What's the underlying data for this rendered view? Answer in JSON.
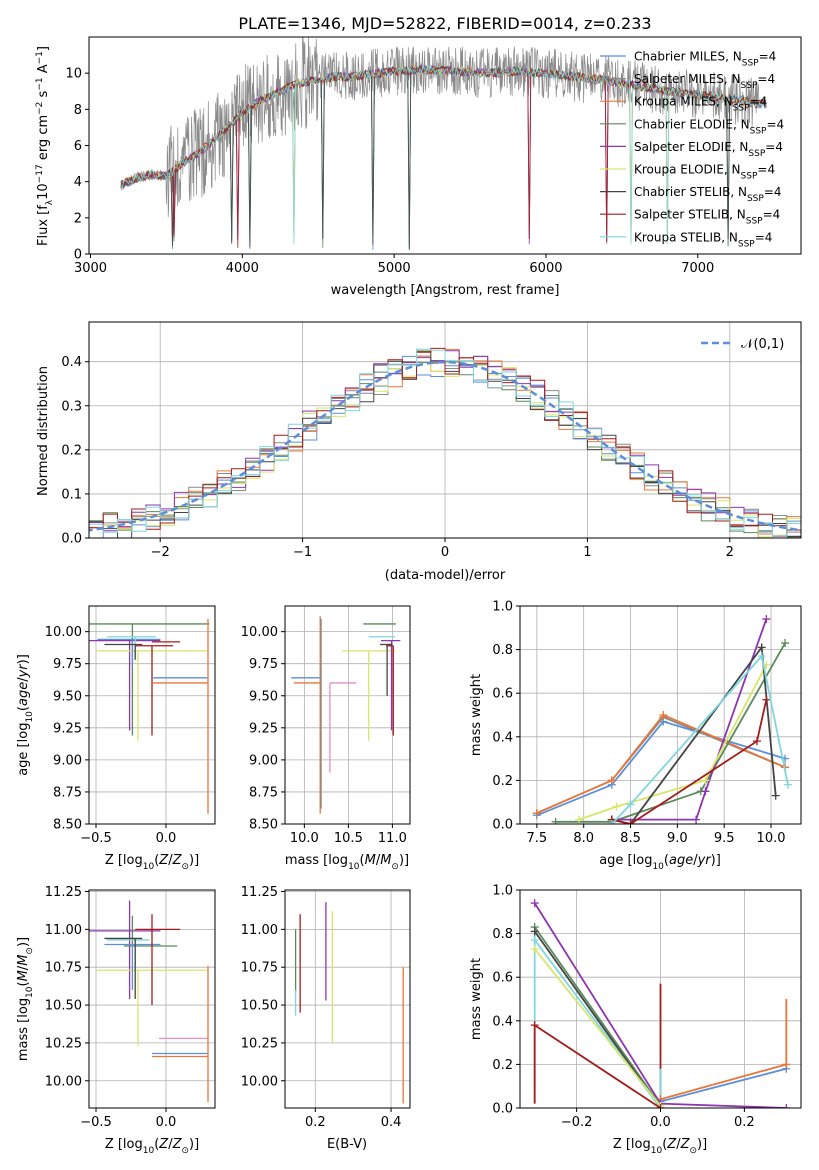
{
  "figure": {
    "title": "PLATE=1346, MJD=52822, FIBERID=0014, z=0.233"
  },
  "series_styles": [
    {
      "name": "Chabrier MILES",
      "color": "#5b8fd9"
    },
    {
      "name": "Salpeter MILES",
      "color": "#8a8a8a"
    },
    {
      "name": "Kroupa MILES",
      "color": "#e8773a"
    },
    {
      "name": "Chabrier ELODIE",
      "color": "#5a8a5a"
    },
    {
      "name": "Salpeter ELODIE",
      "color": "#8e35b0"
    },
    {
      "name": "Kroupa ELODIE",
      "color": "#d7e66a"
    },
    {
      "name": "Chabrier STELIB",
      "color": "#444444"
    },
    {
      "name": "Salpeter STELIB",
      "color": "#a51c1c"
    },
    {
      "name": "Kroupa STELIB",
      "color": "#7fd6df"
    }
  ],
  "chart_data": [
    {
      "id": "spectrum",
      "type": "line",
      "title": "PLATE=1346, MJD=52822, FIBERID=0014, z=0.233",
      "xlabel": "wavelength [Angstrom, rest frame]",
      "ylabel": "Flux [f_λ 10^-17 erg cm^-2 s^-1 A^-1]",
      "xlim": [
        2990,
        7680
      ],
      "ylim": [
        0,
        12
      ],
      "xticks": [
        3000,
        4000,
        5000,
        6000,
        7000
      ],
      "yticks": [
        0,
        2,
        4,
        6,
        8,
        10
      ],
      "legend_position": "right",
      "legend": [
        {
          "label": "Chabrier MILES, N_SSP=4",
          "color": "#5b8fd9"
        },
        {
          "label": "Salpeter MILES, N_SSP=4",
          "color": "#8a8a8a"
        },
        {
          "label": "Kroupa MILES, N_SSP=4",
          "color": "#e8773a"
        },
        {
          "label": "Chabrier ELODIE, N_SSP=4",
          "color": "#5a8a5a"
        },
        {
          "label": "Salpeter ELODIE, N_SSP=4",
          "color": "#8e35b0"
        },
        {
          "label": "Kroupa ELODIE, N_SSP=4",
          "color": "#d7e66a"
        },
        {
          "label": "Chabrier STELIB, N_SSP=4",
          "color": "#444444"
        },
        {
          "label": "Salpeter STELIB, N_SSP=4",
          "color": "#a51c1c"
        },
        {
          "label": "Kroupa STELIB, N_SSP=4",
          "color": "#7fd6df"
        }
      ],
      "continuum": {
        "x": [
          3200,
          3300,
          3400,
          3500,
          3600,
          3700,
          3800,
          3900,
          4000,
          4100,
          4200,
          4300,
          4400,
          4500,
          4600,
          4700,
          4800,
          4900,
          5000,
          5200,
          5400,
          5600,
          5800,
          6000,
          6200,
          6400,
          6600,
          6800,
          7000,
          7200,
          7400
        ],
        "y": [
          3.8,
          4.2,
          4.4,
          4.3,
          5.0,
          5.5,
          6.2,
          7.0,
          7.8,
          8.4,
          8.8,
          9.2,
          9.5,
          9.6,
          9.8,
          9.8,
          9.9,
          10.0,
          10.1,
          10.2,
          10.1,
          10.0,
          10.1,
          10.0,
          9.8,
          9.6,
          9.3,
          9.0,
          8.8,
          8.6,
          8.3
        ]
      },
      "noisy_observed_range": [
        3500,
        7400
      ],
      "absorption_features_x": [
        3540,
        3550,
        3930,
        3968,
        4050,
        4340,
        4530,
        4860,
        5100,
        5890,
        6400,
        6560,
        6800,
        7200
      ]
    },
    {
      "id": "residuals",
      "type": "histogram",
      "xlabel": "(data-model)/error",
      "ylabel": "Normed distribution",
      "xlim": [
        -2.5,
        2.5
      ],
      "ylim": [
        0,
        0.49
      ],
      "xticks": [
        -2,
        -1,
        0,
        1,
        2
      ],
      "yticks": [
        0.0,
        0.1,
        0.2,
        0.3,
        0.4
      ],
      "bin_width": 0.1,
      "reference_curve": {
        "label": "𝒩(0,1)",
        "color": "#5b8fd9",
        "style": "dashed"
      },
      "legend_position": "top-right"
    },
    {
      "id": "age_vs_Z",
      "type": "errorbar",
      "xlabel": "Z [log10(Z/Z⊙)]",
      "ylabel": "age  [log10(age/yr)]",
      "xlim": [
        -0.55,
        0.35
      ],
      "ylim": [
        8.5,
        10.2
      ],
      "xticks": [
        -0.5,
        0.0
      ],
      "yticks": [
        8.5,
        8.75,
        9.0,
        9.25,
        9.5,
        9.75,
        10.0
      ],
      "points": [
        {
          "color": "#8e35b0",
          "x": -0.26,
          "y": 9.93,
          "xerr": [
            0.5,
            0.22
          ],
          "yerr": [
            0.7,
            0.0
          ]
        },
        {
          "color": "#5a8a5a",
          "x": -0.24,
          "y": 10.06,
          "xerr": [
            0.44,
            0.55
          ],
          "yerr": [
            0.87,
            0.0
          ]
        },
        {
          "color": "#d7e66a",
          "x": -0.2,
          "y": 9.85,
          "xerr": [
            0.3,
            0.5
          ],
          "yerr": [
            0.7,
            0.0
          ]
        },
        {
          "color": "#5b8fd9",
          "x": -0.24,
          "y": 9.94,
          "xerr": [
            0.25,
            0.2
          ],
          "yerr": [
            0.2,
            0.0
          ]
        },
        {
          "color": "#7fd6df",
          "x": -0.22,
          "y": 9.96,
          "xerr": [
            0.2,
            0.15
          ],
          "yerr": [
            0.15,
            0.0
          ]
        },
        {
          "color": "#444444",
          "x": -0.22,
          "y": 9.9,
          "xerr": [
            0.22,
            0.05
          ],
          "yerr": [
            0.12,
            0.0
          ]
        },
        {
          "color": "#a51c1c",
          "x": -0.1,
          "y": 9.89,
          "xerr": [
            0.12,
            0.15
          ],
          "yerr": [
            0.7,
            0.0
          ]
        },
        {
          "color": "#a51c1c",
          "x": -0.1,
          "y": 9.92,
          "xerr": [
            0.0,
            0.2
          ],
          "yerr": [
            0.0,
            0.0
          ]
        },
        {
          "color": "#5b8fd9",
          "x": 0.3,
          "y": 9.64,
          "xerr": [
            0.4,
            0.0
          ],
          "yerr": [
            0.0,
            0.0
          ]
        },
        {
          "color": "#e8773a",
          "x": 0.3,
          "y": 9.6,
          "xerr": [
            0.4,
            0.0
          ],
          "yerr": [
            1.02,
            0.5
          ]
        }
      ]
    },
    {
      "id": "age_vs_mass",
      "type": "errorbar",
      "xlabel": "mass [log10(M/M⊙)]",
      "ylabel": "",
      "xlim": [
        9.78,
        11.2
      ],
      "ylim": [
        8.5,
        10.2
      ],
      "xticks": [
        10.0,
        10.5,
        11.0
      ],
      "yticks": [
        8.5,
        8.75,
        9.0,
        9.25,
        9.5,
        9.75,
        10.0
      ],
      "points": [
        {
          "color": "#5b8fd9",
          "x": 10.18,
          "y": 9.64,
          "xerr": [
            0.33,
            0.0
          ],
          "yerr": [
            0.0,
            0.0
          ]
        },
        {
          "color": "#e8773a",
          "x": 10.18,
          "y": 9.6,
          "xerr": [
            0.3,
            0.0
          ],
          "yerr": [
            1.02,
            0.52
          ]
        },
        {
          "color": "#8a8a8a",
          "x": 10.19,
          "y": 9.6,
          "xerr": [
            0.0,
            0.0
          ],
          "yerr": [
            0.98,
            0.5
          ]
        },
        {
          "color": "#e88fbf",
          "x": 10.29,
          "y": 9.6,
          "xerr": [
            0.0,
            0.3
          ],
          "yerr": [
            0.7,
            0.0
          ]
        },
        {
          "color": "#5a8a5a",
          "x": 10.89,
          "y": 10.06,
          "xerr": [
            0.22,
            0.15
          ],
          "yerr": [
            0.0,
            0.0
          ]
        },
        {
          "color": "#d7e66a",
          "x": 10.73,
          "y": 9.85,
          "xerr": [
            0.3,
            0.3
          ],
          "yerr": [
            0.7,
            0.0
          ]
        },
        {
          "color": "#7fd6df",
          "x": 10.93,
          "y": 9.96,
          "xerr": [
            0.2,
            0.1
          ],
          "yerr": [
            0.0,
            0.0
          ]
        },
        {
          "color": "#8e35b0",
          "x": 10.99,
          "y": 9.93,
          "xerr": [
            0.12,
            0.1
          ],
          "yerr": [
            0.7,
            0.0
          ]
        },
        {
          "color": "#444444",
          "x": 10.94,
          "y": 9.9,
          "xerr": [
            0.08,
            0.06
          ],
          "yerr": [
            0.4,
            0.0
          ]
        },
        {
          "color": "#a51c1c",
          "x": 11.01,
          "y": 9.89,
          "xerr": [
            0.08,
            0.0
          ],
          "yerr": [
            0.7,
            0.0
          ]
        }
      ]
    },
    {
      "id": "weight_vs_age",
      "type": "line",
      "xlabel": "age  [log10(age/yr)]",
      "ylabel": "mass weight",
      "xlim": [
        7.32,
        10.32
      ],
      "ylim": [
        0.0,
        1.0
      ],
      "xticks": [
        7.5,
        8.0,
        8.5,
        9.0,
        9.5,
        10.0
      ],
      "yticks": [
        0.0,
        0.2,
        0.4,
        0.6,
        0.8,
        1.0
      ],
      "series": [
        {
          "color": "#5b8fd9",
          "x": [
            7.5,
            8.3,
            8.85,
            10.15
          ],
          "y": [
            0.04,
            0.18,
            0.47,
            0.3
          ]
        },
        {
          "color": "#8a8a8a",
          "x": [
            7.5,
            8.3,
            8.85,
            10.15
          ],
          "y": [
            0.05,
            0.2,
            0.49,
            0.26
          ]
        },
        {
          "color": "#e8773a",
          "x": [
            7.5,
            8.3,
            8.85,
            10.15
          ],
          "y": [
            0.05,
            0.2,
            0.5,
            0.26
          ]
        },
        {
          "color": "#5a8a5a",
          "x": [
            7.7,
            8.3,
            9.25,
            10.15
          ],
          "y": [
            0.01,
            0.01,
            0.15,
            0.83
          ]
        },
        {
          "color": "#8e35b0",
          "x": [
            8.3,
            9.2,
            9.3,
            9.95
          ],
          "y": [
            0.02,
            0.02,
            0.15,
            0.94
          ]
        },
        {
          "color": "#d7e66a",
          "x": [
            7.95,
            8.35,
            9.3,
            9.95
          ],
          "y": [
            0.02,
            0.08,
            0.2,
            0.73
          ]
        },
        {
          "color": "#444444",
          "x": [
            8.3,
            8.5,
            9.9,
            10.05
          ],
          "y": [
            0.02,
            0.0,
            0.81,
            0.13
          ]
        },
        {
          "color": "#a51c1c",
          "x": [
            8.3,
            8.5,
            9.85,
            9.95
          ],
          "y": [
            0.02,
            0.0,
            0.38,
            0.57
          ]
        },
        {
          "color": "#7fd6df",
          "x": [
            8.3,
            8.5,
            9.9,
            10.18
          ],
          "y": [
            0.0,
            0.09,
            0.77,
            0.18
          ]
        }
      ]
    },
    {
      "id": "mass_vs_Z",
      "type": "errorbar",
      "xlabel": "Z [log10(Z/Z⊙)]",
      "ylabel": "mass [log10(M/M⊙)]",
      "xlim": [
        -0.55,
        0.35
      ],
      "ylim": [
        9.82,
        11.26
      ],
      "xticks": [
        -0.5,
        0.0
      ],
      "yticks": [
        10.0,
        10.25,
        10.5,
        10.75,
        11.0,
        11.25
      ],
      "points": [
        {
          "color": "#8e35b0",
          "x": -0.26,
          "y": 10.99,
          "xerr": [
            0.5,
            0.22
          ],
          "yerr": [
            0.45,
            0.2
          ]
        },
        {
          "color": "#5a8a5a",
          "x": -0.24,
          "y": 10.89,
          "xerr": [
            0.06,
            0.32
          ],
          "yerr": [
            0.0,
            0.2
          ]
        },
        {
          "color": "#d7e66a",
          "x": -0.2,
          "y": 10.73,
          "xerr": [
            0.3,
            0.5
          ],
          "yerr": [
            0.5,
            0.0
          ]
        },
        {
          "color": "#5b8fd9",
          "x": -0.24,
          "y": 10.9,
          "xerr": [
            0.2,
            0.2
          ],
          "yerr": [
            0.3,
            0.0
          ]
        },
        {
          "color": "#7fd6df",
          "x": -0.22,
          "y": 10.93,
          "xerr": [
            0.2,
            0.1
          ],
          "yerr": [
            0.2,
            0.0
          ]
        },
        {
          "color": "#444444",
          "x": -0.22,
          "y": 10.94,
          "xerr": [
            0.22,
            0.05
          ],
          "yerr": [
            0.4,
            0.0
          ]
        },
        {
          "color": "#a51c1c",
          "x": -0.1,
          "y": 11.0,
          "xerr": [
            0.12,
            0.2
          ],
          "yerr": [
            0.5,
            0.1
          ]
        },
        {
          "color": "#e88fbf",
          "x": 0.3,
          "y": 10.28,
          "xerr": [
            0.35,
            0.0
          ],
          "yerr": [
            0.0,
            0.0
          ]
        },
        {
          "color": "#5b8fd9",
          "x": 0.3,
          "y": 10.18,
          "xerr": [
            0.4,
            0.0
          ],
          "yerr": [
            0.0,
            0.0
          ]
        },
        {
          "color": "#e8773a",
          "x": 0.3,
          "y": 10.16,
          "xerr": [
            0.4,
            0.0
          ],
          "yerr": [
            0.3,
            0.6
          ]
        }
      ]
    },
    {
      "id": "mass_vs_ebv",
      "type": "errorbar",
      "xlabel": "E(B-V)",
      "ylabel": "",
      "xlim": [
        0.12,
        0.45
      ],
      "ylim": [
        9.82,
        11.26
      ],
      "xticks": [
        0.2,
        0.4
      ],
      "yticks": [
        10.0,
        10.25,
        10.5,
        10.75,
        11.0,
        11.25
      ],
      "points": [
        {
          "color": "#5a8a5a",
          "x": 0.148,
          "y": 10.58,
          "xerr": [
            0.0,
            0.0
          ],
          "yerr": [
            0.0,
            0.42
          ]
        },
        {
          "color": "#7fd6df",
          "x": 0.148,
          "y": 10.5,
          "xerr": [
            0.0,
            0.0
          ],
          "yerr": [
            0.07,
            0.1
          ]
        },
        {
          "color": "#a51c1c",
          "x": 0.16,
          "y": 10.75,
          "xerr": [
            0.0,
            0.0
          ],
          "yerr": [
            0.3,
            0.35
          ]
        },
        {
          "color": "#8e35b0",
          "x": 0.228,
          "y": 10.98,
          "xerr": [
            0.0,
            0.0
          ],
          "yerr": [
            0.45,
            0.2
          ]
        },
        {
          "color": "#d7e66a",
          "x": 0.245,
          "y": 10.7,
          "xerr": [
            0.0,
            0.0
          ],
          "yerr": [
            0.45,
            0.42
          ]
        },
        {
          "color": "#e8773a",
          "x": 0.432,
          "y": 10.3,
          "xerr": [
            0.0,
            0.0
          ],
          "yerr": [
            0.45,
            0.45
          ]
        }
      ]
    },
    {
      "id": "weight_vs_Z",
      "type": "line",
      "xlabel": "Z [log10(Z/Z⊙)]",
      "ylabel": "mass weight",
      "xlim": [
        -0.335,
        0.335
      ],
      "ylim": [
        0.0,
        1.0
      ],
      "xticks": [
        -0.2,
        0.0,
        0.2
      ],
      "yticks": [
        0.0,
        0.2,
        0.4,
        0.6,
        0.8,
        1.0
      ],
      "series": [
        {
          "color": "#5b8fd9",
          "x": [
            0.0,
            0.3
          ],
          "y": [
            0.03,
            0.18
          ]
        },
        {
          "color": "#e8773a",
          "x": [
            0.0,
            0.3
          ],
          "y": [
            0.04,
            0.2
          ]
        },
        {
          "color": "#8e35b0",
          "x": [
            -0.3,
            0.0,
            0.3
          ],
          "y": [
            0.94,
            0.02,
            0.0
          ]
        },
        {
          "color": "#5a8a5a",
          "x": [
            -0.3,
            0.0
          ],
          "y": [
            0.83,
            0.01
          ]
        },
        {
          "color": "#444444",
          "x": [
            -0.3,
            0.0
          ],
          "y": [
            0.81,
            0.0
          ]
        },
        {
          "color": "#7fd6df",
          "x": [
            -0.3,
            0.0
          ],
          "y": [
            0.77,
            0.0
          ]
        },
        {
          "color": "#d7e66a",
          "x": [
            -0.3,
            0.0
          ],
          "y": [
            0.73,
            0.01
          ]
        },
        {
          "color": "#a51c1c",
          "x": [
            -0.3,
            0.0
          ],
          "y": [
            0.38,
            0.0
          ]
        }
      ],
      "vertical_bars": [
        {
          "color": "#7fd6df",
          "x": -0.3,
          "y": [
            0.02,
            0.8
          ]
        },
        {
          "color": "#a51c1c",
          "x": -0.3,
          "y": [
            0.02,
            0.38
          ]
        },
        {
          "color": "#a51c1c",
          "x": 0.0,
          "y": [
            0.0,
            0.57
          ]
        },
        {
          "color": "#7fd6df",
          "x": 0.0,
          "y": [
            0.0,
            0.18
          ]
        },
        {
          "color": "#e8773a",
          "x": 0.3,
          "y": [
            0.18,
            0.5
          ]
        }
      ]
    }
  ]
}
